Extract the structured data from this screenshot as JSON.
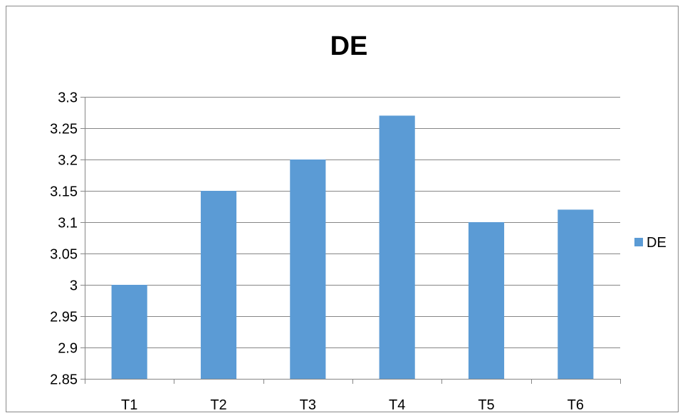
{
  "chart_data": {
    "type": "bar",
    "title": "DE",
    "xlabel": "",
    "ylabel": "",
    "categories": [
      "T1",
      "T2",
      "T3",
      "T4",
      "T5",
      "T6"
    ],
    "series": [
      {
        "name": "DE",
        "values": [
          3.0,
          3.15,
          3.2,
          3.27,
          3.1,
          3.12
        ],
        "color": "#5B9BD5"
      }
    ],
    "ylim": [
      2.85,
      3.3
    ],
    "yticks": [
      "2.85",
      "2.9",
      "2.95",
      "3",
      "3.05",
      "3.1",
      "3.15",
      "3.2",
      "3.25",
      "3.3"
    ],
    "grid": true,
    "legend_position": "right"
  },
  "colors": {
    "bar": "#5B9BD5",
    "gridline": "#868686",
    "axis": "#868686",
    "frame": "#898989"
  }
}
